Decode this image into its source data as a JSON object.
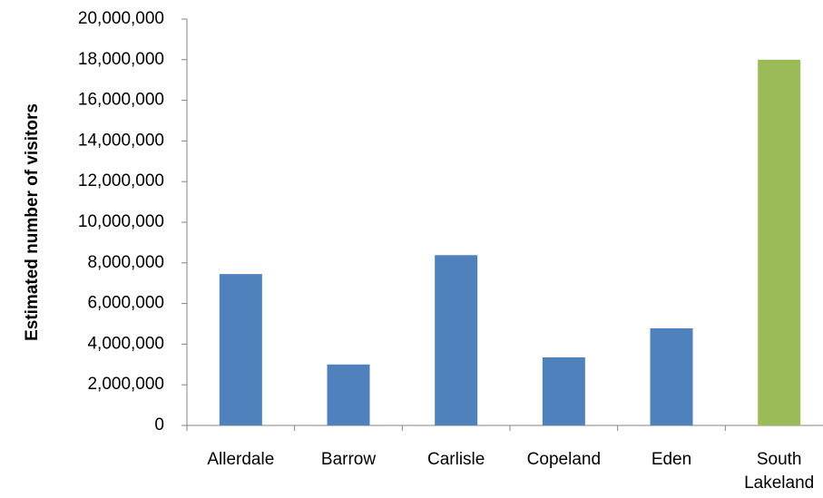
{
  "chart_data": {
    "type": "bar",
    "title": "",
    "xlabel": "",
    "ylabel": "Estimated number of visitors",
    "categories": [
      "Allerdale",
      "Barrow",
      "Carlisle",
      "Copeland",
      "Eden",
      "South Lakeland"
    ],
    "category_lines": [
      [
        "Allerdale"
      ],
      [
        "Barrow"
      ],
      [
        "Carlisle"
      ],
      [
        "Copeland"
      ],
      [
        "Eden"
      ],
      [
        "South",
        "Lakeland"
      ]
    ],
    "values": [
      7450000,
      3000000,
      8380000,
      3350000,
      4780000,
      18000000
    ],
    "bar_colors": [
      "#4f81bd",
      "#4f81bd",
      "#4f81bd",
      "#4f81bd",
      "#4f81bd",
      "#9bbb59"
    ],
    "ylim": [
      0,
      20000000
    ],
    "yticks": [
      0,
      2000000,
      4000000,
      6000000,
      8000000,
      10000000,
      12000000,
      14000000,
      16000000,
      18000000,
      20000000
    ],
    "ytick_labels": [
      "0",
      "2,000,000",
      "4,000,000",
      "6,000,000",
      "8,000,000",
      "10,000,000",
      "12,000,000",
      "14,000,000",
      "16,000,000",
      "18,000,000",
      "20,000,000"
    ],
    "grid": false,
    "legend": "none",
    "axis_color": "#868686"
  }
}
